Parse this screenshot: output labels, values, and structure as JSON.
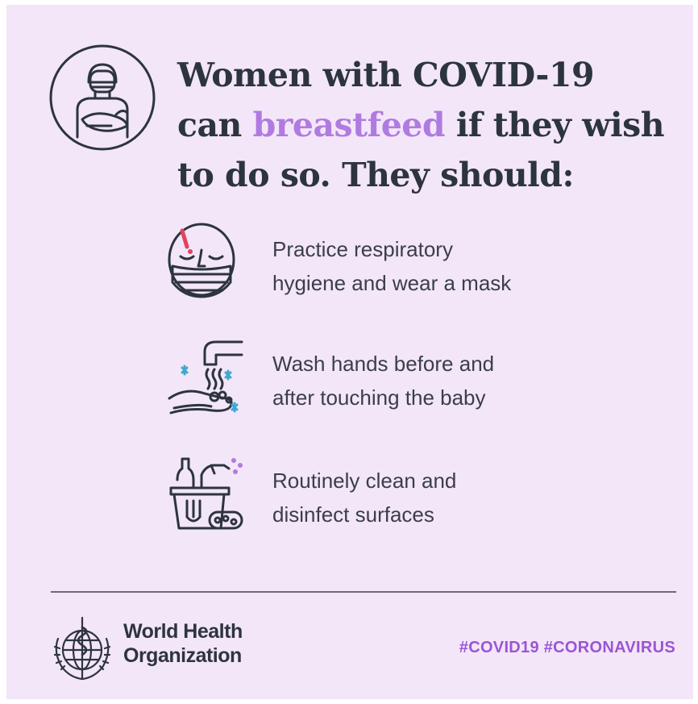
{
  "headline": {
    "line1": "Women with COVID-19",
    "line2_pre": "can ",
    "line2_accent": "breastfeed",
    "line2_post": " if they wish",
    "line3": "to do so. They should:"
  },
  "items": [
    {
      "icon": "masked-face-icon",
      "line1": "Practice respiratory",
      "line2": "hygiene and wear a mask"
    },
    {
      "icon": "hand-washing-icon",
      "line1": "Wash hands before and",
      "line2": "after touching the baby"
    },
    {
      "icon": "cleaning-supplies-icon",
      "line1": "Routinely clean and",
      "line2": "disinfect surfaces"
    }
  ],
  "footer": {
    "org_line1": "World Health",
    "org_line2": "Organization",
    "hashtags": "#COVID19 #CORONAVIRUS"
  },
  "colors": {
    "background": "#f3e6f9",
    "text": "#2c3440",
    "accent": "#b07be0",
    "hashtag": "#9b55d4"
  }
}
